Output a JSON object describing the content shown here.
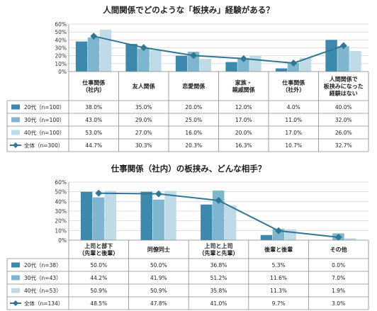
{
  "chart_data": [
    {
      "type": "bar",
      "title": "人間関係でどのような「板挟み」経験がある？",
      "ylim": [
        0,
        60
      ],
      "y_ticks": [
        "0%",
        "10%",
        "20%",
        "30%",
        "40%",
        "50%",
        "60%"
      ],
      "categories": [
        [
          "仕事関係",
          "（社内）"
        ],
        [
          "友人関係"
        ],
        [
          "恋愛関係"
        ],
        [
          "家族・",
          "親戚関係"
        ],
        [
          "仕事関係",
          "（社外）"
        ],
        [
          "人間関係で",
          "板挟みになった",
          "経験はない"
        ]
      ],
      "series": [
        {
          "name": "20代（n=100）",
          "values": [
            38.0,
            35.0,
            20.0,
            12.0,
            4.0,
            40.0
          ],
          "labels": [
            "38.0%",
            "35.0%",
            "20.0%",
            "12.0%",
            "4.0%",
            "40.0%"
          ]
        },
        {
          "name": "30代（n=100）",
          "values": [
            43.0,
            29.0,
            25.0,
            17.0,
            11.0,
            32.0
          ],
          "labels": [
            "43.0%",
            "29.0%",
            "25.0%",
            "17.0%",
            "11.0%",
            "32.0%"
          ]
        },
        {
          "name": "40代（n=100）",
          "values": [
            53.0,
            27.0,
            16.0,
            20.0,
            17.0,
            26.0
          ],
          "labels": [
            "53.0%",
            "27.0%",
            "16.0%",
            "20.0%",
            "17.0%",
            "26.0%"
          ]
        },
        {
          "name": "全体（n=300）",
          "values": [
            44.7,
            30.3,
            20.3,
            16.3,
            10.7,
            32.7
          ],
          "labels": [
            "44.7%",
            "30.3%",
            "20.3%",
            "16.3%",
            "10.7%",
            "32.7%"
          ],
          "mark": "line"
        }
      ],
      "grid": true,
      "legend": "data-table-left"
    },
    {
      "type": "bar",
      "title": "仕事関係（社内）の板挟み、どんな相手？",
      "ylim": [
        0,
        60
      ],
      "y_ticks": [
        "0%",
        "10%",
        "20%",
        "30%",
        "40%",
        "50%",
        "60%"
      ],
      "categories": [
        [
          "上司と部下",
          "（先輩と後輩）"
        ],
        [
          "同僚同士"
        ],
        [
          "上司と上司",
          "（先輩と先輩）"
        ],
        [
          "後輩と後輩"
        ],
        [
          "その他"
        ]
      ],
      "series": [
        {
          "name": "20代（n=38）",
          "values": [
            50.0,
            50.0,
            36.8,
            5.3,
            0.0
          ],
          "labels": [
            "50.0%",
            "50.0%",
            "36.8%",
            "5.3%",
            "0.0%"
          ]
        },
        {
          "name": "30代（n=43）",
          "values": [
            44.2,
            41.9,
            51.2,
            11.6,
            7.0
          ],
          "labels": [
            "44.2%",
            "41.9%",
            "51.2%",
            "11.6%",
            "7.0%"
          ]
        },
        {
          "name": "40代（n=53）",
          "values": [
            50.9,
            50.9,
            35.8,
            11.3,
            1.9
          ],
          "labels": [
            "50.9%",
            "50.9%",
            "35.8%",
            "11.3%",
            "1.9%"
          ]
        },
        {
          "name": "全体（n=134）",
          "values": [
            48.5,
            47.8,
            41.0,
            9.7,
            3.0
          ],
          "labels": [
            "48.5%",
            "47.8%",
            "41.0%",
            "9.7%",
            "3.0%"
          ],
          "mark": "line"
        }
      ],
      "grid": true,
      "legend": "data-table-left"
    }
  ],
  "colors": {
    "series_20s": "#3b8aae",
    "series_30s": "#7db6ce",
    "series_40s": "#bfdbe8",
    "series_total": "#2f7795",
    "grid": "#d7d7d7",
    "table_border": "#8a8a8a"
  }
}
